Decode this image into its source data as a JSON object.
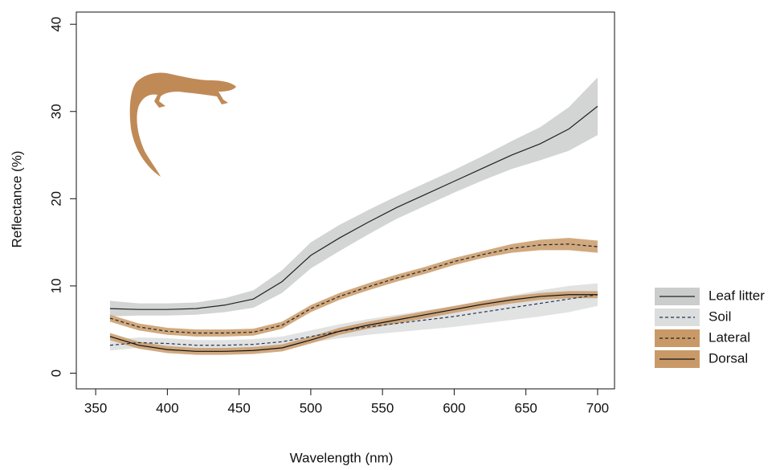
{
  "chart_data": {
    "type": "line",
    "xlabel": "Wavelength (nm)",
    "ylabel": "Reflectance (%)",
    "x": [
      360,
      380,
      400,
      420,
      440,
      460,
      480,
      500,
      520,
      540,
      560,
      580,
      600,
      620,
      640,
      660,
      680,
      700
    ],
    "xlim": [
      336.5,
      711.8
    ],
    "ylim": [
      -1.8,
      41.4
    ],
    "xticks": [
      350,
      400,
      450,
      500,
      550,
      600,
      650,
      700
    ],
    "yticks": [
      0,
      10,
      20,
      30,
      40
    ],
    "legend": "right",
    "series": [
      {
        "name": "Leaf litter",
        "color": "#222222",
        "fill": "#cbcdcd",
        "dashed": false,
        "values": [
          7.4,
          7.3,
          7.3,
          7.4,
          7.8,
          8.5,
          10.5,
          13.5,
          15.5,
          17.3,
          19.0,
          20.5,
          22.0,
          23.5,
          25.0,
          26.3,
          28.0,
          30.6
        ],
        "lower": [
          6.5,
          6.6,
          6.6,
          6.7,
          7.0,
          7.5,
          9.2,
          12.0,
          14.0,
          15.9,
          17.7,
          19.2,
          20.7,
          22.1,
          23.4,
          24.4,
          25.5,
          27.3
        ],
        "upper": [
          8.3,
          8.0,
          8.0,
          8.1,
          8.6,
          9.5,
          11.8,
          15.0,
          17.0,
          18.7,
          20.3,
          21.8,
          23.3,
          24.9,
          26.6,
          28.2,
          30.5,
          33.9
        ]
      },
      {
        "name": "Soil",
        "color": "#223355",
        "fill": "#dcdddd",
        "dashed": true,
        "values": [
          3.2,
          3.5,
          3.4,
          3.2,
          3.2,
          3.3,
          3.6,
          4.2,
          4.8,
          5.3,
          5.7,
          6.1,
          6.5,
          7.0,
          7.5,
          8.0,
          8.5,
          9.0
        ],
        "lower": [
          2.6,
          2.9,
          2.8,
          2.6,
          2.6,
          2.7,
          3.0,
          3.5,
          4.0,
          4.4,
          4.7,
          5.0,
          5.3,
          5.7,
          6.1,
          6.5,
          7.0,
          7.7
        ],
        "upper": [
          3.8,
          4.1,
          4.0,
          3.8,
          3.8,
          3.9,
          4.2,
          4.9,
          5.6,
          6.2,
          6.7,
          7.2,
          7.7,
          8.3,
          8.9,
          9.5,
          10.0,
          10.3
        ]
      },
      {
        "name": "Lateral",
        "color": "#222222",
        "fill": "#c99a68",
        "dashed": true,
        "values": [
          6.3,
          5.3,
          4.8,
          4.6,
          4.6,
          4.7,
          5.5,
          7.4,
          8.8,
          9.9,
          10.9,
          11.8,
          12.8,
          13.6,
          14.3,
          14.7,
          14.8,
          14.5
        ],
        "lower": [
          5.9,
          4.9,
          4.4,
          4.2,
          4.2,
          4.3,
          5.1,
          7.0,
          8.4,
          9.5,
          10.5,
          11.4,
          12.4,
          13.2,
          13.8,
          14.1,
          14.1,
          13.8
        ],
        "upper": [
          6.7,
          5.7,
          5.2,
          5.0,
          5.0,
          5.1,
          5.9,
          7.8,
          9.2,
          10.3,
          11.3,
          12.2,
          13.2,
          14.0,
          14.8,
          15.3,
          15.5,
          15.2
        ]
      },
      {
        "name": "Dorsal",
        "color": "#111111",
        "fill": "#c99a68",
        "dashed": false,
        "values": [
          4.2,
          3.2,
          2.7,
          2.5,
          2.5,
          2.6,
          2.9,
          3.8,
          4.8,
          5.5,
          6.1,
          6.7,
          7.3,
          7.9,
          8.4,
          8.8,
          9.0,
          9.0
        ],
        "lower": [
          3.8,
          2.8,
          2.3,
          2.1,
          2.1,
          2.2,
          2.5,
          3.4,
          4.4,
          5.1,
          5.7,
          6.3,
          6.9,
          7.5,
          8.0,
          8.4,
          8.6,
          8.6
        ],
        "upper": [
          4.6,
          3.6,
          3.1,
          2.9,
          2.9,
          3.0,
          3.3,
          4.2,
          5.2,
          5.9,
          6.5,
          7.1,
          7.7,
          8.3,
          8.8,
          9.2,
          9.4,
          9.4
        ]
      }
    ]
  }
}
